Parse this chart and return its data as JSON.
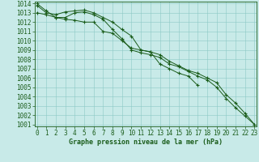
{
  "x": [
    0,
    1,
    2,
    3,
    4,
    5,
    6,
    7,
    8,
    9,
    10,
    11,
    12,
    13,
    14,
    15,
    16,
    17,
    18,
    19,
    20,
    21,
    22,
    23
  ],
  "line1": [
    1013.8,
    1013.0,
    1012.8,
    1013.1,
    1013.2,
    1013.3,
    1013.0,
    1012.5,
    1012.0,
    1011.2,
    1010.5,
    1009.0,
    1008.8,
    1007.5,
    1007.0,
    1006.5,
    1006.2,
    1005.2,
    null,
    null,
    null,
    null,
    null,
    null
  ],
  "line2": [
    1013.0,
    1012.8,
    1012.5,
    1012.5,
    1013.0,
    1013.1,
    1012.8,
    1012.3,
    1011.2,
    1010.2,
    1009.0,
    1008.7,
    1008.5,
    1008.2,
    1007.5,
    1007.2,
    1006.7,
    1006.2,
    1005.8,
    1005.0,
    1003.8,
    1002.8,
    1001.9,
    1001.0
  ],
  "line3": [
    1014.0,
    1013.2,
    1012.5,
    1012.3,
    1012.2,
    1012.0,
    1012.0,
    1011.0,
    1010.8,
    1010.0,
    1009.2,
    1009.0,
    1008.8,
    1008.5,
    1007.8,
    1007.3,
    1006.8,
    1006.5,
    1006.0,
    1005.5,
    1004.2,
    1003.3,
    1002.2,
    1001.0
  ],
  "line_color": "#1a5c1a",
  "bg_color": "#c8eae8",
  "grid_color": "#8cc8c5",
  "xlabel": "Graphe pression niveau de la mer (hPa)",
  "tick_color": "#1a5c1a",
  "ylim_min": 1001,
  "ylim_max": 1014,
  "xlim_min": 0,
  "xlim_max": 23,
  "yticks": [
    1001,
    1002,
    1003,
    1004,
    1005,
    1006,
    1007,
    1008,
    1009,
    1010,
    1011,
    1012,
    1013,
    1014
  ],
  "xticks": [
    0,
    1,
    2,
    3,
    4,
    5,
    6,
    7,
    8,
    9,
    10,
    11,
    12,
    13,
    14,
    15,
    16,
    17,
    18,
    19,
    20,
    21,
    22,
    23
  ],
  "tick_fontsize": 5.5,
  "xlabel_fontsize": 6.0
}
